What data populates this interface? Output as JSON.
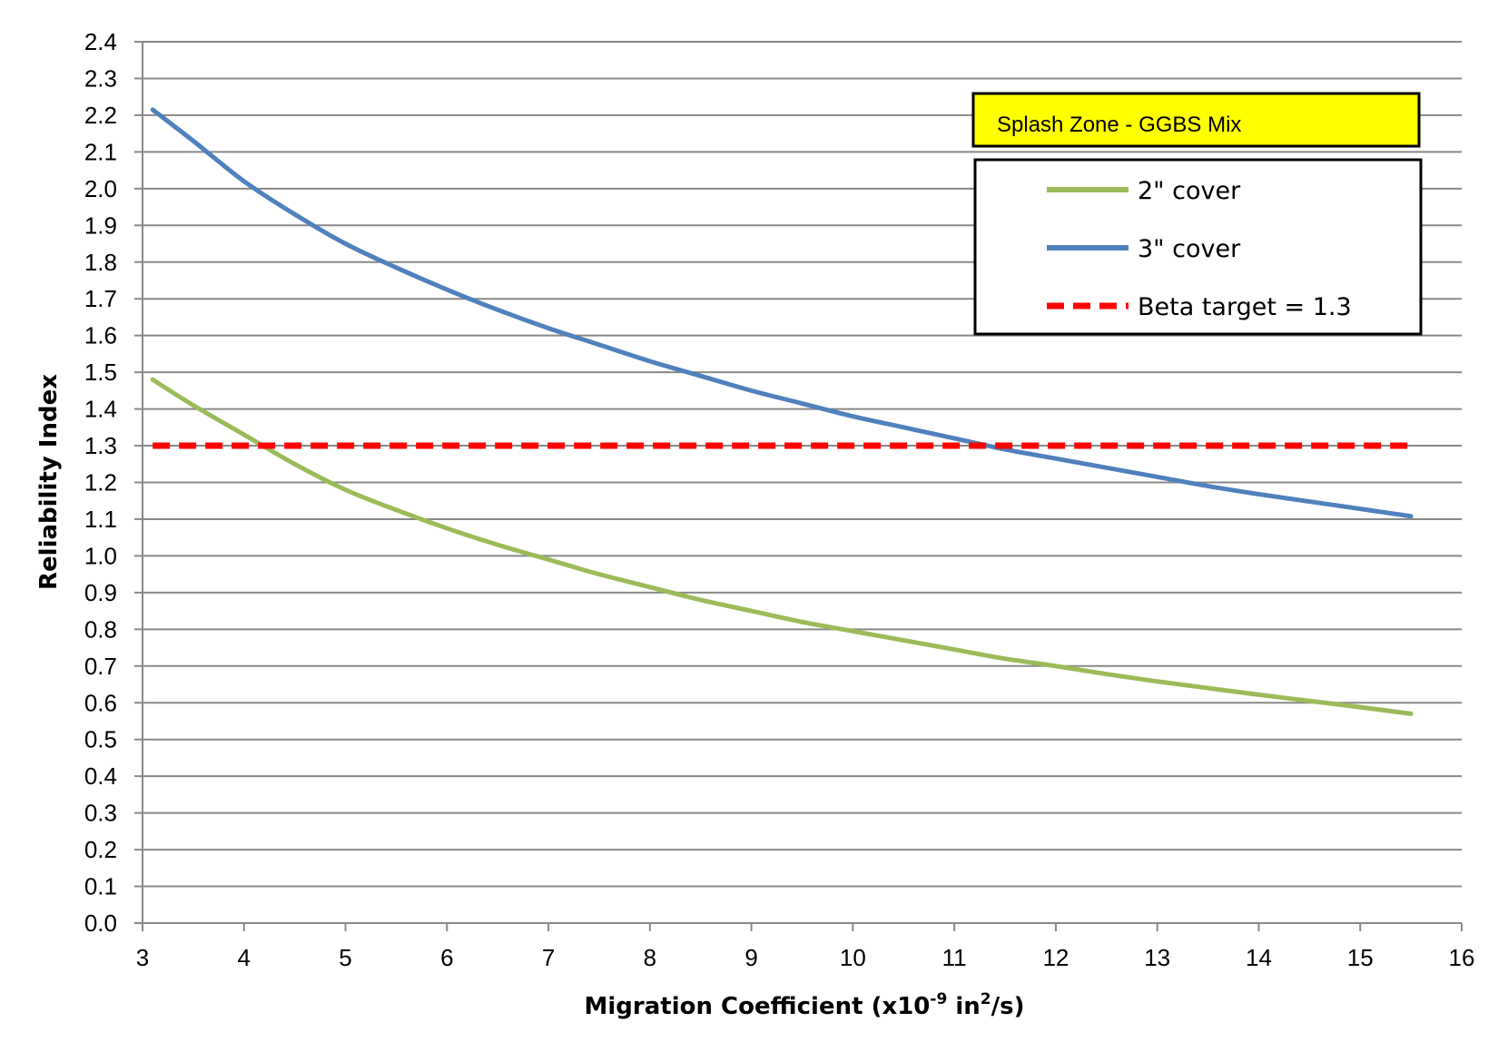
{
  "chart_data": {
    "type": "line",
    "title": "Splash Zone - GGBS Mix",
    "xlabel": {
      "prefix": "Migration Coefficient (x10",
      "exp1": "-9",
      "middle": " in",
      "exp2": "2",
      "suffix": "/s)"
    },
    "ylabel": "Reliability Index",
    "xlim": [
      3,
      16
    ],
    "ylim": [
      0.0,
      2.4
    ],
    "xticks": [
      "3",
      "4",
      "5",
      "6",
      "7",
      "8",
      "9",
      "10",
      "11",
      "12",
      "13",
      "14",
      "15",
      "16"
    ],
    "yticks": [
      "0.0",
      "0.1",
      "0.2",
      "0.3",
      "0.4",
      "0.5",
      "0.6",
      "0.7",
      "0.8",
      "0.9",
      "1.0",
      "1.1",
      "1.2",
      "1.3",
      "1.4",
      "1.5",
      "1.6",
      "1.7",
      "1.8",
      "1.9",
      "2.0",
      "2.1",
      "2.2",
      "2.3",
      "2.4"
    ],
    "grid": "horizontal",
    "legend_position": "top-right",
    "series": [
      {
        "name": "2\" cover",
        "color": "#9BBB59",
        "style": "solid",
        "x": [
          3.1,
          3.5,
          4,
          4.5,
          5,
          5.5,
          6,
          6.5,
          7,
          7.5,
          8,
          8.5,
          9,
          9.5,
          10,
          10.5,
          11,
          11.5,
          12,
          12.5,
          13,
          13.5,
          14,
          14.5,
          15,
          15.5
        ],
        "y": [
          1.48,
          1.41,
          1.33,
          1.25,
          1.18,
          1.125,
          1.075,
          1.03,
          0.99,
          0.95,
          0.915,
          0.88,
          0.85,
          0.82,
          0.795,
          0.77,
          0.745,
          0.72,
          0.7,
          0.678,
          0.658,
          0.64,
          0.622,
          0.605,
          0.588,
          0.57
        ]
      },
      {
        "name": "3\" cover",
        "color": "#4F81BD",
        "style": "solid",
        "x": [
          3.1,
          3.5,
          4,
          4.5,
          5,
          5.5,
          6,
          6.5,
          7,
          7.5,
          8,
          8.5,
          9,
          9.5,
          10,
          10.5,
          11,
          11.5,
          12,
          12.5,
          13,
          13.5,
          14,
          14.5,
          15,
          15.5
        ],
        "y": [
          2.215,
          2.13,
          2.02,
          1.93,
          1.85,
          1.785,
          1.725,
          1.67,
          1.62,
          1.575,
          1.53,
          1.49,
          1.45,
          1.415,
          1.38,
          1.35,
          1.32,
          1.29,
          1.265,
          1.24,
          1.215,
          1.19,
          1.168,
          1.148,
          1.128,
          1.108
        ]
      },
      {
        "name": "Beta target = 1.3",
        "color": "#FF0000",
        "style": "dashed",
        "x": [
          3.1,
          15.5
        ],
        "y": [
          1.3,
          1.3
        ]
      }
    ]
  }
}
